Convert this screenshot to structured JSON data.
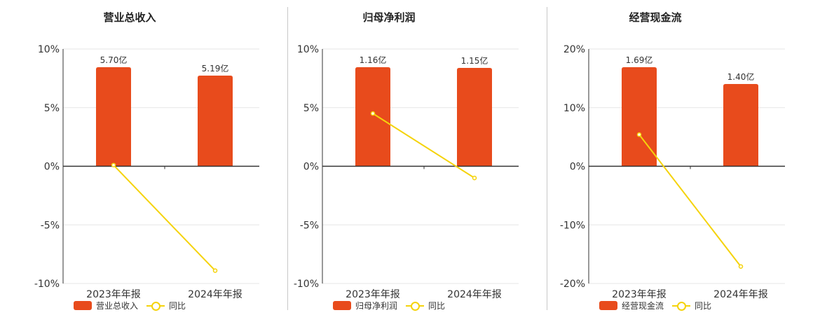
{
  "colors": {
    "bar": "#e84b1c",
    "line": "#f5d30c",
    "grid": "#e6e6e6",
    "axis": "#333333"
  },
  "chart_data": [
    {
      "type": "bar",
      "title": "营业总收入",
      "categories": [
        "2023年年报",
        "2024年年报"
      ],
      "bar_labels": [
        "5.70亿",
        "5.19亿"
      ],
      "bar_values": [
        5.7,
        5.19
      ],
      "bar_series_name": "营业总收入",
      "line_series_name": "同比",
      "line_values": [
        0.1,
        -8.9
      ],
      "ylim": [
        -10,
        10
      ],
      "yticks": [
        "10%",
        "5%",
        "0%",
        "-5%",
        "-10%"
      ],
      "ytick_values": [
        10,
        5,
        0,
        -5,
        -10
      ],
      "grid": true,
      "legend_position": "bottom"
    },
    {
      "type": "bar",
      "title": "归母净利润",
      "categories": [
        "2023年年报",
        "2024年年报"
      ],
      "bar_labels": [
        "1.16亿",
        "1.15亿"
      ],
      "bar_values": [
        1.16,
        1.15
      ],
      "bar_series_name": "归母净利润",
      "line_series_name": "同比",
      "line_values": [
        4.5,
        -1.0
      ],
      "ylim": [
        -10,
        10
      ],
      "yticks": [
        "10%",
        "5%",
        "0%",
        "-5%",
        "-10%"
      ],
      "ytick_values": [
        10,
        5,
        0,
        -5,
        -10
      ],
      "grid": true,
      "legend_position": "bottom"
    },
    {
      "type": "bar",
      "title": "经营现金流",
      "categories": [
        "2023年年报",
        "2024年年报"
      ],
      "bar_labels": [
        "1.69亿",
        "1.40亿"
      ],
      "bar_values": [
        1.69,
        1.4
      ],
      "bar_series_name": "经营现金流",
      "line_series_name": "同比",
      "line_values": [
        5.4,
        -17.1
      ],
      "ylim": [
        -20,
        20
      ],
      "yticks": [
        "20%",
        "10%",
        "0%",
        "-10%",
        "-20%"
      ],
      "ytick_values": [
        20,
        10,
        0,
        -10,
        -20
      ],
      "grid": true,
      "legend_position": "bottom"
    }
  ]
}
